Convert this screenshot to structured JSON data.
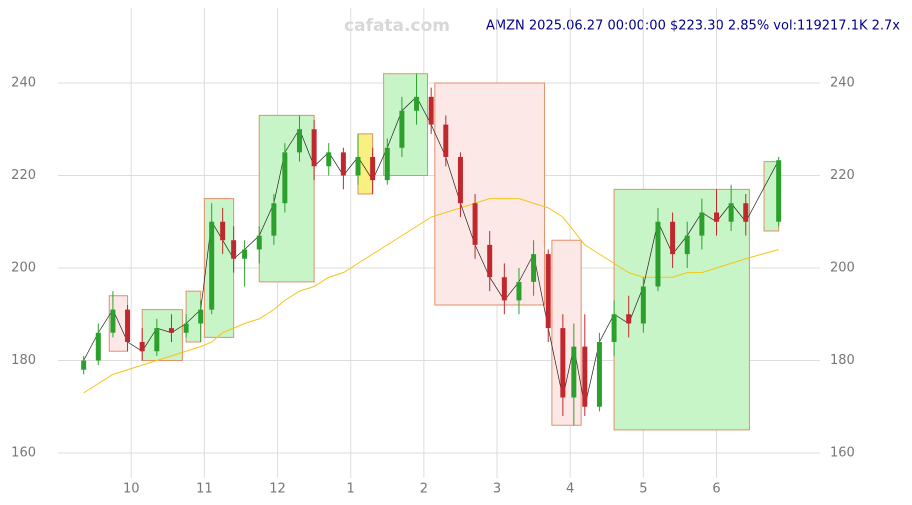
{
  "chart_data": {
    "type": "candlestick",
    "watermark": "cafata.com",
    "title": "AMZN 2025.06.27 00:00:00 $223.30 2.85% vol:119217.1K 2.7x",
    "xlim": [
      9.3,
      18.95
    ],
    "xticks": [
      10,
      11,
      12,
      {
        "value": 13,
        "label": "1"
      },
      {
        "value": 14,
        "label": "2"
      },
      {
        "value": 15,
        "label": "3"
      },
      {
        "value": 16,
        "label": "4"
      },
      {
        "value": 17,
        "label": "5"
      },
      {
        "value": 18,
        "label": "6"
      }
    ],
    "ylim": [
      160,
      255
    ],
    "yticks": [
      160,
      180,
      200,
      220,
      240
    ],
    "grid": true,
    "up_color": "#2ca02c",
    "down_color": "#c0282d",
    "x": [
      9.35,
      9.55,
      9.75,
      9.95,
      10.15,
      10.35,
      10.55,
      10.75,
      10.95,
      11.1,
      11.25,
      11.4,
      11.55,
      11.75,
      11.95,
      12.1,
      12.3,
      12.5,
      12.7,
      12.9,
      13.1,
      13.3,
      13.5,
      13.7,
      13.9,
      14.1,
      14.3,
      14.5,
      14.7,
      14.9,
      15.1,
      15.3,
      15.5,
      15.7,
      15.9,
      16.05,
      16.2,
      16.4,
      16.6,
      16.8,
      17.0,
      17.2,
      17.4,
      17.6,
      17.8,
      18.0,
      18.2,
      18.4,
      18.85
    ],
    "open": [
      178,
      180,
      186,
      191,
      184,
      182,
      187,
      186,
      188,
      191,
      210,
      206,
      202,
      204,
      207,
      214,
      225,
      230,
      222,
      225,
      220,
      224,
      219,
      226,
      234,
      237,
      231,
      224,
      214,
      205,
      198,
      193,
      197,
      203,
      187,
      172,
      183,
      170,
      184,
      190,
      188,
      196,
      210,
      203,
      207,
      212,
      210,
      214,
      210
    ],
    "high": [
      181,
      188,
      195,
      192,
      187,
      189,
      190,
      190,
      193,
      214,
      213,
      209,
      206,
      209,
      216,
      227,
      233,
      232,
      227,
      226,
      229,
      226,
      228,
      237,
      242,
      239,
      233,
      225,
      216,
      208,
      201,
      200,
      206,
      204,
      190,
      188,
      190,
      186,
      193,
      194,
      198,
      213,
      212,
      210,
      215,
      217,
      218,
      216,
      224
    ],
    "low": [
      177,
      179,
      185,
      182,
      180,
      181,
      184,
      185,
      184,
      190,
      203,
      199,
      196,
      201,
      205,
      212,
      223,
      219,
      220,
      217,
      218,
      216,
      218,
      224,
      231,
      229,
      222,
      211,
      202,
      195,
      190,
      190,
      194,
      184,
      168,
      166,
      168,
      169,
      181,
      185,
      186,
      195,
      200,
      200,
      204,
      207,
      208,
      207,
      209
    ],
    "close": [
      180,
      186,
      191,
      184,
      182,
      187,
      186,
      188,
      191,
      210,
      206,
      202,
      204,
      207,
      214,
      225,
      230,
      222,
      225,
      220,
      224,
      219,
      226,
      234,
      237,
      231,
      224,
      214,
      205,
      198,
      193,
      197,
      203,
      187,
      172,
      183,
      170,
      184,
      190,
      188,
      196,
      210,
      203,
      207,
      212,
      210,
      214,
      210,
      223.3
    ],
    "zones": [
      {
        "start": 9.7,
        "end": 9.95,
        "low": 182,
        "high": 194,
        "color": "#fde8e8"
      },
      {
        "start": 10.15,
        "end": 10.7,
        "low": 180,
        "high": 191,
        "color": "#c8f5c8"
      },
      {
        "start": 10.75,
        "end": 10.95,
        "low": 184,
        "high": 195,
        "color": "#c8f5c8"
      },
      {
        "start": 11.0,
        "end": 11.4,
        "low": 185,
        "high": 215,
        "color": "#c8f5c8"
      },
      {
        "start": 11.75,
        "end": 12.5,
        "low": 197,
        "high": 233,
        "color": "#c8f5c8"
      },
      {
        "start": 13.1,
        "end": 13.3,
        "low": 216,
        "high": 229,
        "color": "#f8f080"
      },
      {
        "start": 13.45,
        "end": 14.05,
        "low": 220,
        "high": 242,
        "color": "#c8f5c8"
      },
      {
        "start": 14.15,
        "end": 15.65,
        "low": 192,
        "high": 240,
        "color": "#fde8e8"
      },
      {
        "start": 15.75,
        "end": 16.15,
        "low": 166,
        "high": 206,
        "color": "#fde8e8"
      },
      {
        "start": 16.6,
        "end": 18.45,
        "low": 165,
        "high": 217,
        "color": "#c8f5c8"
      },
      {
        "start": 18.65,
        "end": 18.85,
        "low": 208,
        "high": 223,
        "color": "#c8f5c8"
      }
    ],
    "series": [
      {
        "color": "#f5c518",
        "values": [
          173,
          175,
          177,
          178,
          179,
          180,
          181,
          182,
          183,
          184,
          186,
          187,
          188,
          189,
          191,
          193,
          195,
          196,
          198,
          199,
          201,
          203,
          205,
          207,
          209,
          211,
          212,
          213,
          214,
          215,
          215,
          215,
          214,
          213,
          211,
          208,
          205,
          203,
          201,
          199,
          198,
          198,
          198,
          199,
          199,
          200,
          201,
          202,
          204
        ]
      }
    ]
  }
}
